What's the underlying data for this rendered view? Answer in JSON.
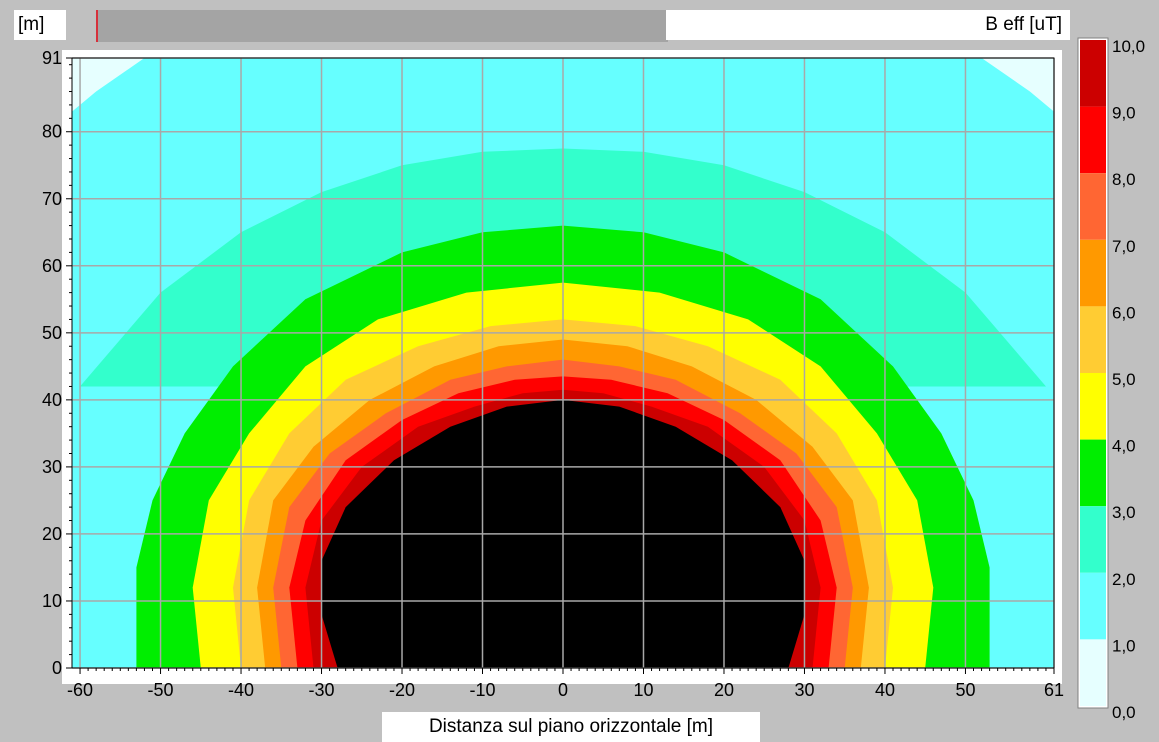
{
  "window": {
    "y_unit": "[m]",
    "legend_title": "B eff [uT]",
    "xlabel": "Distanza sul piano orizzontale [m]"
  },
  "chart_data": {
    "type": "heatmap",
    "title": "",
    "xlabel": "Distanza sul piano orizzontale [m]",
    "ylabel": "[m]",
    "xlim": [
      -61,
      61
    ],
    "ylim": [
      0,
      91
    ],
    "x_ticks": [
      "-60",
      "-50",
      "-40",
      "-30",
      "-20",
      "-10",
      "0",
      "10",
      "20",
      "30",
      "40",
      "50",
      "61"
    ],
    "x_tick_values": [
      -60,
      -50,
      -40,
      -30,
      -20,
      -10,
      0,
      10,
      20,
      30,
      40,
      50,
      61
    ],
    "y_ticks": [
      "0",
      "10",
      "20",
      "30",
      "40",
      "50",
      "60",
      "70",
      "80",
      "91"
    ],
    "y_tick_values": [
      0,
      10,
      20,
      30,
      40,
      50,
      60,
      70,
      80,
      91
    ],
    "grid": true,
    "legend_placement": "right",
    "colorbar": {
      "title": "B eff [uT]",
      "labels": [
        "10,0",
        "9,0",
        "8,0",
        "7,0",
        "6,0",
        "5,0",
        "4,0",
        "3,0",
        "2,0",
        "1,0",
        "0,0"
      ],
      "levels": [
        {
          "min": 0,
          "max": 1,
          "color": "#e6ffff"
        },
        {
          "min": 1,
          "max": 2,
          "color": "#66ffff"
        },
        {
          "min": 2,
          "max": 3,
          "color": "#33ffcc"
        },
        {
          "min": 3,
          "max": 4,
          "color": "#00ee00"
        },
        {
          "min": 4,
          "max": 5,
          "color": "#ffff00"
        },
        {
          "min": 5,
          "max": 6,
          "color": "#ffcc33"
        },
        {
          "min": 6,
          "max": 7,
          "color": "#ff9900"
        },
        {
          "min": 7,
          "max": 8,
          "color": "#ff6633"
        },
        {
          "min": 8,
          "max": 9,
          "color": "#ff0000"
        },
        {
          "min": 9,
          "max": 10,
          "color": "#cc0000"
        },
        {
          "min": 10,
          "max": null,
          "color": "#000000"
        }
      ]
    },
    "contours": [
      {
        "level": 1,
        "boundary_xy": [
          [
            -61,
            83
          ],
          [
            -50,
            91
          ],
          [
            50,
            91
          ],
          [
            61,
            83
          ]
        ]
      },
      {
        "level": 2,
        "boundary_xy": [
          [
            -60,
            42
          ],
          [
            -50,
            56
          ],
          [
            -40,
            65
          ],
          [
            -30,
            71
          ],
          [
            -20,
            75
          ],
          [
            -10,
            77
          ],
          [
            0,
            77.5
          ],
          [
            10,
            77
          ],
          [
            20,
            75
          ],
          [
            30,
            71
          ],
          [
            40,
            65
          ],
          [
            50,
            56
          ],
          [
            60,
            42
          ]
        ]
      },
      {
        "level": 3,
        "boundary_xy": [
          [
            -53,
            0
          ],
          [
            -53,
            15
          ],
          [
            -51,
            25
          ],
          [
            -47,
            35
          ],
          [
            -41,
            45
          ],
          [
            -32,
            55
          ],
          [
            -20,
            62
          ],
          [
            -10,
            65
          ],
          [
            0,
            66
          ],
          [
            10,
            65
          ],
          [
            20,
            62
          ],
          [
            32,
            55
          ],
          [
            41,
            45
          ],
          [
            47,
            35
          ],
          [
            51,
            25
          ],
          [
            53,
            15
          ],
          [
            53,
            0
          ]
        ]
      },
      {
        "level": 4,
        "boundary_xy": [
          [
            -45,
            0
          ],
          [
            -46,
            12
          ],
          [
            -44,
            25
          ],
          [
            -39,
            35
          ],
          [
            -32,
            45
          ],
          [
            -23,
            52
          ],
          [
            -12,
            56
          ],
          [
            0,
            57.5
          ],
          [
            12,
            56
          ],
          [
            23,
            52
          ],
          [
            32,
            45
          ],
          [
            39,
            35
          ],
          [
            44,
            25
          ],
          [
            46,
            12
          ],
          [
            45,
            0
          ]
        ]
      },
      {
        "level": 5,
        "boundary_xy": [
          [
            -40,
            0
          ],
          [
            -41,
            12
          ],
          [
            -39,
            25
          ],
          [
            -34,
            35
          ],
          [
            -27,
            43
          ],
          [
            -18,
            48
          ],
          [
            -9,
            51
          ],
          [
            0,
            52
          ],
          [
            9,
            51
          ],
          [
            18,
            48
          ],
          [
            27,
            43
          ],
          [
            34,
            35
          ],
          [
            39,
            25
          ],
          [
            41,
            12
          ],
          [
            40,
            0
          ]
        ]
      },
      {
        "level": 6,
        "boundary_xy": [
          [
            -37,
            0
          ],
          [
            -38,
            12
          ],
          [
            -36,
            25
          ],
          [
            -31,
            33
          ],
          [
            -24,
            40
          ],
          [
            -16,
            45
          ],
          [
            -8,
            48
          ],
          [
            0,
            49
          ],
          [
            8,
            48
          ],
          [
            16,
            45
          ],
          [
            24,
            40
          ],
          [
            31,
            33
          ],
          [
            36,
            25
          ],
          [
            38,
            12
          ],
          [
            37,
            0
          ]
        ]
      },
      {
        "level": 7,
        "boundary_xy": [
          [
            -35,
            0
          ],
          [
            -36,
            12
          ],
          [
            -34,
            24
          ],
          [
            -29,
            32
          ],
          [
            -22,
            38
          ],
          [
            -14,
            43
          ],
          [
            -7,
            45
          ],
          [
            0,
            46
          ],
          [
            7,
            45
          ],
          [
            14,
            43
          ],
          [
            22,
            38
          ],
          [
            29,
            32
          ],
          [
            34,
            24
          ],
          [
            36,
            12
          ],
          [
            35,
            0
          ]
        ]
      },
      {
        "level": 8,
        "boundary_xy": [
          [
            -33,
            0
          ],
          [
            -34,
            12
          ],
          [
            -32,
            22
          ],
          [
            -27,
            31
          ],
          [
            -20,
            37
          ],
          [
            -13,
            41
          ],
          [
            -6,
            43
          ],
          [
            0,
            43.5
          ],
          [
            6,
            43
          ],
          [
            13,
            41
          ],
          [
            20,
            37
          ],
          [
            27,
            31
          ],
          [
            32,
            22
          ],
          [
            34,
            12
          ],
          [
            33,
            0
          ]
        ]
      },
      {
        "level": 9,
        "boundary_xy": [
          [
            -31,
            0
          ],
          [
            -32,
            12
          ],
          [
            -30,
            22
          ],
          [
            -25,
            30
          ],
          [
            -18,
            36
          ],
          [
            -11,
            39
          ],
          [
            -5,
            41
          ],
          [
            0,
            41.5
          ],
          [
            5,
            41
          ],
          [
            11,
            39
          ],
          [
            18,
            36
          ],
          [
            25,
            30
          ],
          [
            30,
            22
          ],
          [
            32,
            12
          ],
          [
            31,
            0
          ]
        ]
      },
      {
        "level": 10,
        "boundary_xy": [
          [
            -28,
            0
          ],
          [
            -30,
            8
          ],
          [
            -30,
            16
          ],
          [
            -27,
            24
          ],
          [
            -21,
            31
          ],
          [
            -14,
            36
          ],
          [
            -7,
            39
          ],
          [
            0,
            40
          ],
          [
            7,
            39
          ],
          [
            14,
            36
          ],
          [
            21,
            31
          ],
          [
            27,
            24
          ],
          [
            30,
            16
          ],
          [
            30,
            8
          ],
          [
            28,
            0
          ]
        ]
      }
    ]
  }
}
